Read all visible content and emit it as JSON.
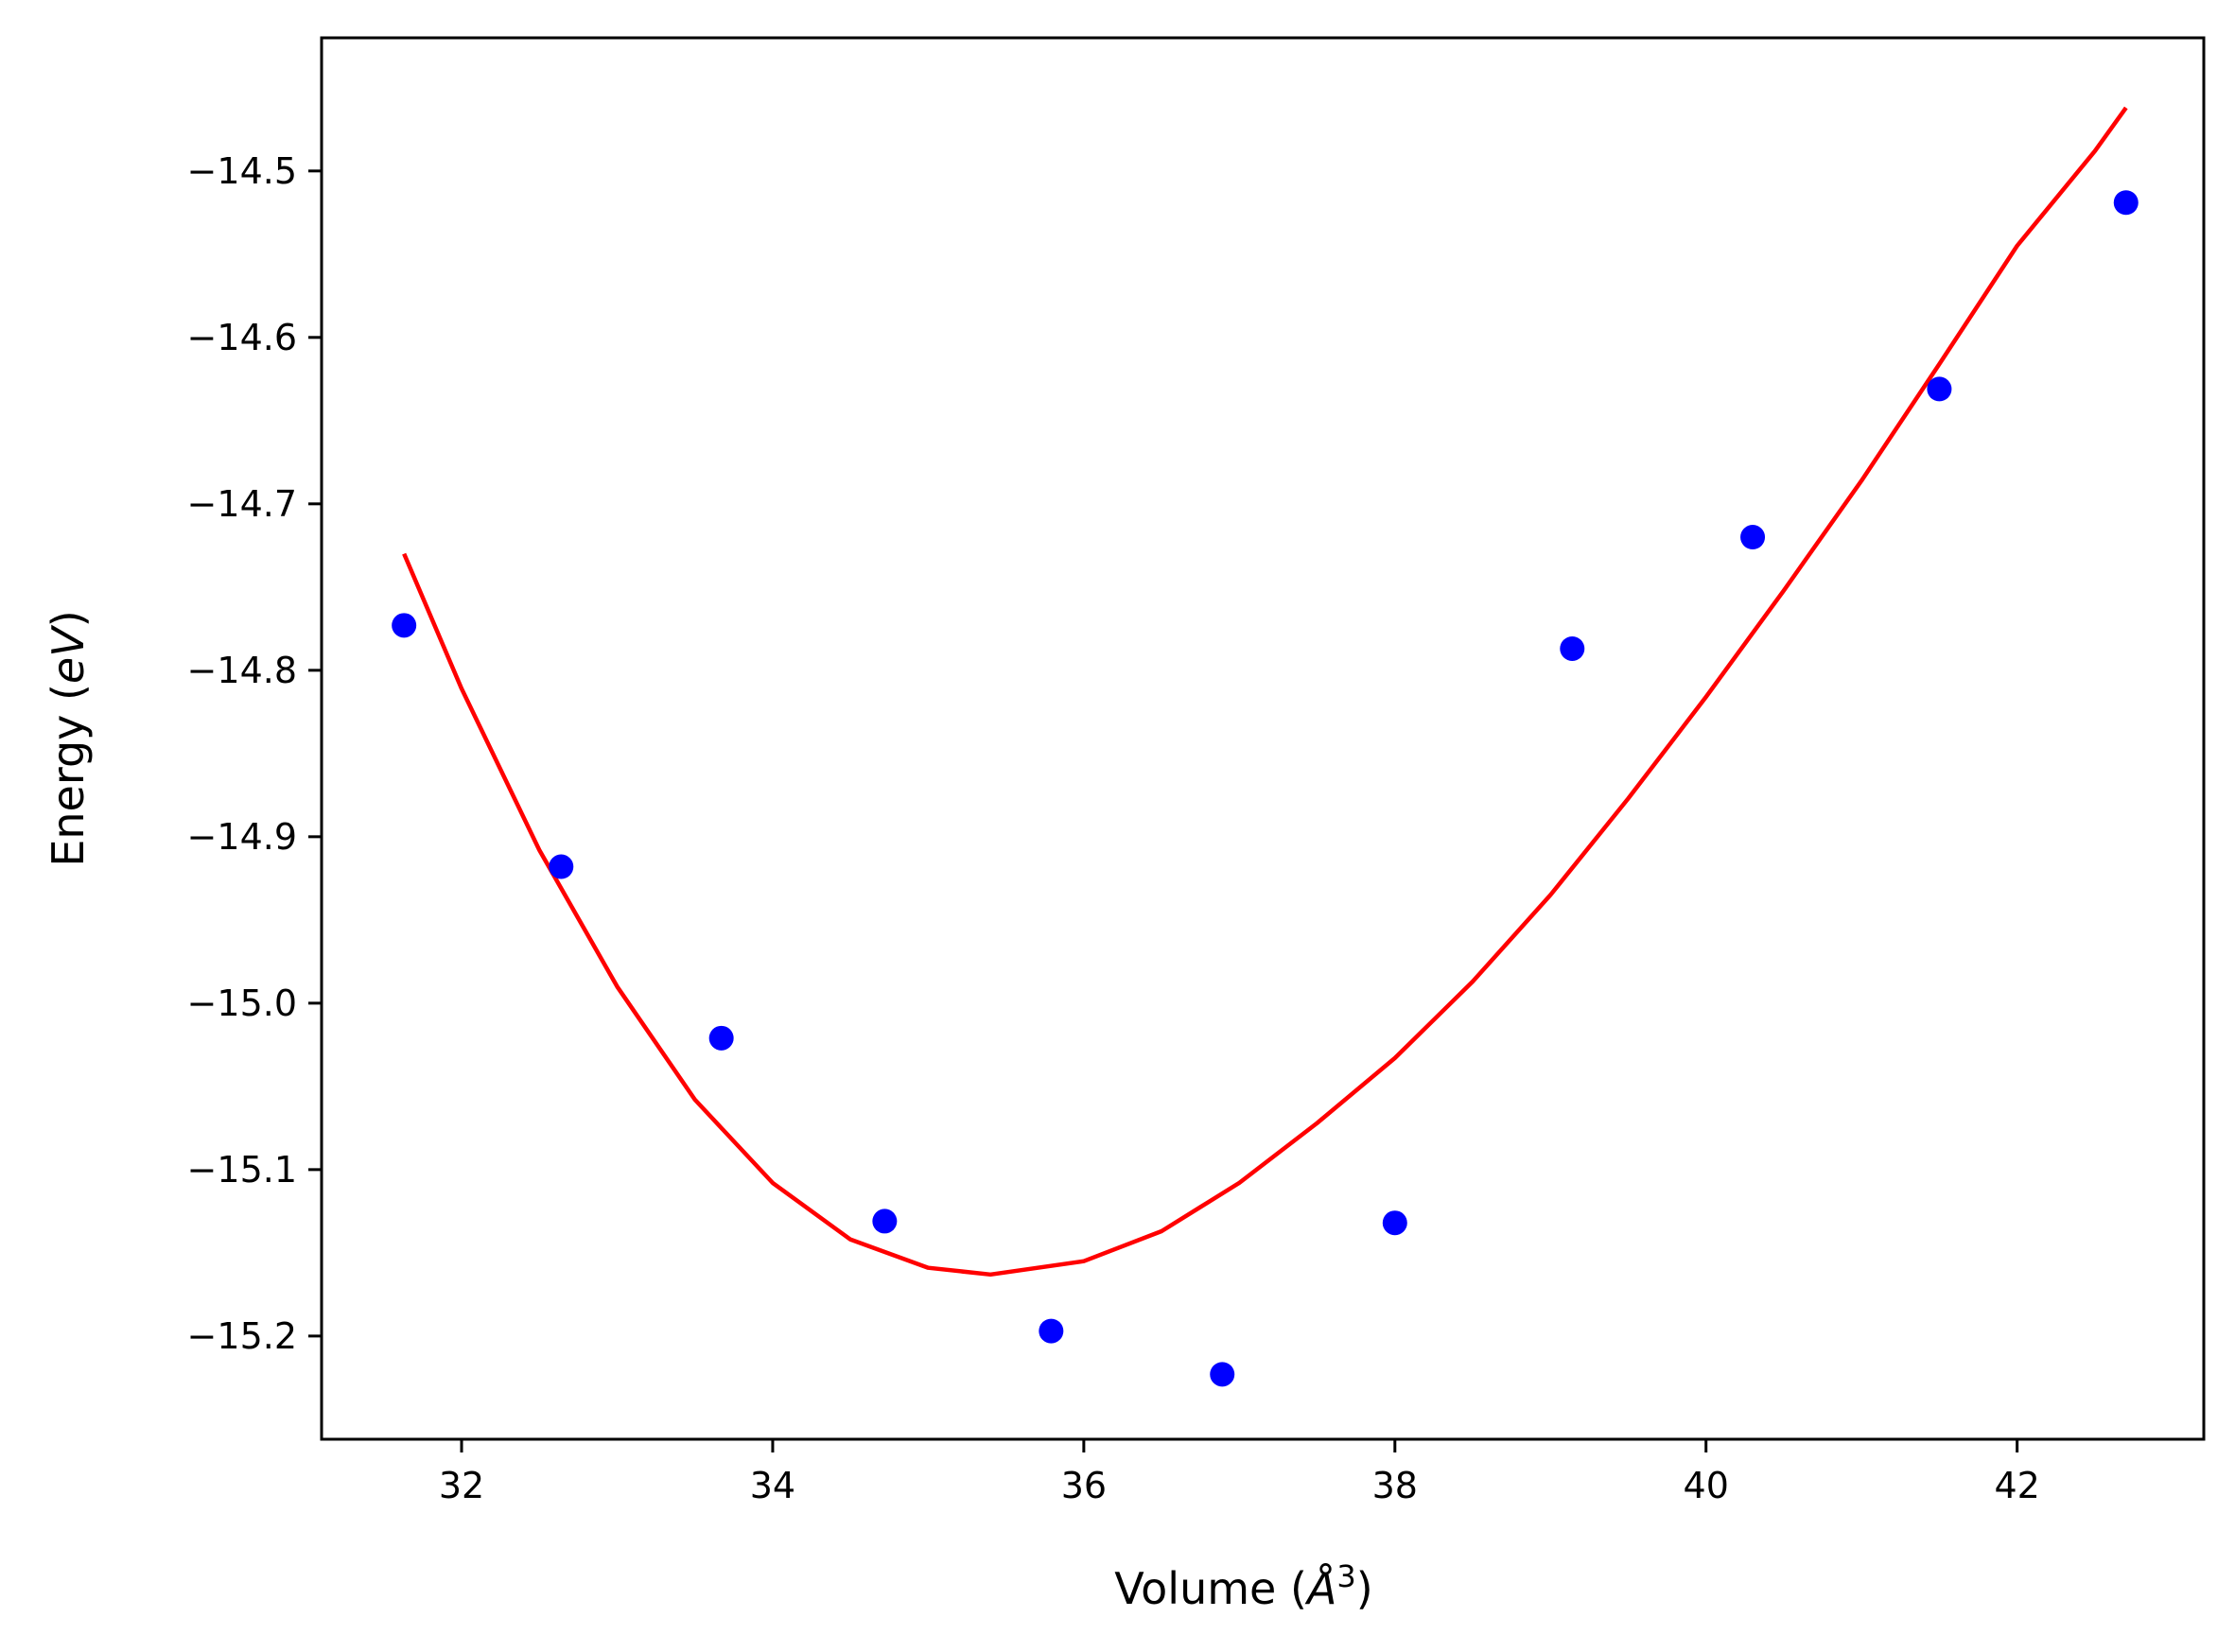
{
  "chart_data": {
    "type": "scatter",
    "title": "",
    "xlabel": "Volume",
    "ylabel": "Energy",
    "xlabel_unit": "Å",
    "xlabel_unit_exp": "3",
    "ylabel_unit": "eV",
    "xlim": [
      31.1,
      43.2
    ],
    "ylim": [
      -15.262,
      -14.42
    ],
    "xticks": [
      32,
      34,
      36,
      38,
      40,
      42
    ],
    "yticks": [
      -14.5,
      -14.6,
      -14.7,
      -14.8,
      -14.9,
      -15.0,
      -15.1,
      -15.2
    ],
    "xtick_labels": [
      "32",
      "34",
      "36",
      "38",
      "40",
      "42"
    ],
    "ytick_labels": [
      "−14.5",
      "−14.6",
      "−14.7",
      "−14.8",
      "−14.9",
      "−15.0",
      "−15.1",
      "−15.2"
    ],
    "grid": false,
    "legend": "none",
    "series": [
      {
        "kind": "points",
        "color": "#0000ff",
        "x": [
          31.63,
          32.64,
          33.67,
          34.72,
          35.79,
          36.89,
          38.0,
          39.14,
          40.3,
          41.5,
          42.7
        ],
        "y": [
          -14.773,
          -14.918,
          -15.021,
          -15.131,
          -15.197,
          -15.223,
          -15.132,
          -14.787,
          -14.72,
          -14.631,
          -14.519
        ]
      },
      {
        "kind": "fit",
        "color": "#ff0000",
        "x": [
          31.63,
          32.0,
          32.5,
          33.0,
          33.5,
          34.0,
          34.5,
          35.0,
          35.4,
          36.0,
          36.5,
          37.0,
          37.5,
          38.0,
          38.5,
          39.0,
          39.5,
          40.0,
          40.5,
          41.0,
          41.5,
          42.0,
          42.5,
          42.7
        ],
        "y": [
          -14.73,
          -14.811,
          -14.908,
          -14.99,
          -15.058,
          -15.108,
          -15.142,
          -15.159,
          -15.163,
          -15.155,
          -15.137,
          -15.108,
          -15.072,
          -15.033,
          -14.987,
          -14.935,
          -14.877,
          -14.816,
          -14.752,
          -14.686,
          -14.616,
          -14.545,
          -14.488,
          -14.462
        ]
      }
    ]
  }
}
